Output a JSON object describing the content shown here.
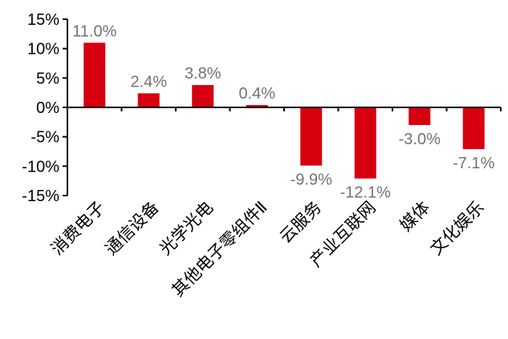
{
  "chart_data": {
    "type": "bar",
    "categories": [
      "消费电子",
      "通信设备",
      "光学光电",
      "其他电子零组件Ⅱ",
      "云服务",
      "产业互联网",
      "媒体",
      "文化娱乐"
    ],
    "values": [
      11.0,
      2.4,
      3.8,
      0.4,
      -9.9,
      -12.1,
      -3.0,
      -7.1
    ],
    "data_labels": [
      "11.0%",
      "2.4%",
      "3.8%",
      "0.4%",
      "-9.9%",
      "-12.1%",
      "-3.0%",
      "-7.1%"
    ],
    "ylim": [
      -15,
      15
    ],
    "yticks": [
      15,
      10,
      5,
      0,
      -5,
      -10,
      -15
    ],
    "ytick_labels": [
      "15%",
      "10%",
      "5%",
      "0%",
      "-5%",
      "-10%",
      "-15%"
    ],
    "grid": false,
    "legend": "none",
    "bar_color": "#D7000F",
    "label_color": "#767171"
  }
}
